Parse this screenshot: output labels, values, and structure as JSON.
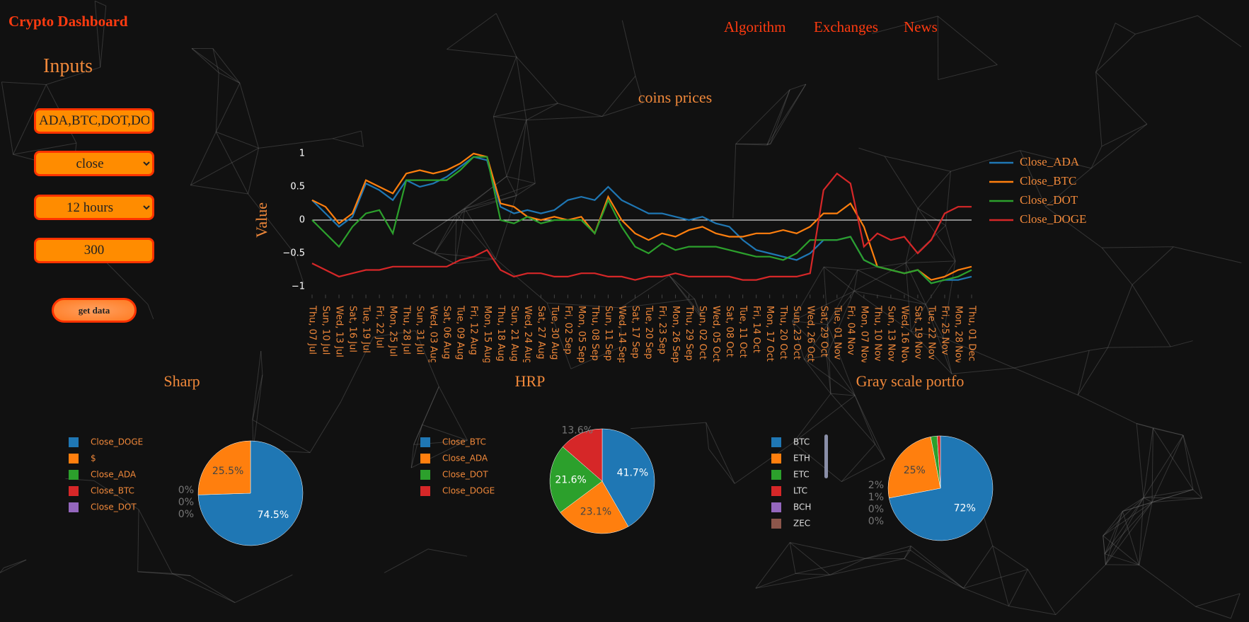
{
  "header": {
    "title": "Crypto Dashboard"
  },
  "nav": [
    "Algorithm",
    "Exchanges",
    "News"
  ],
  "inputs": {
    "heading": "Inputs",
    "coins": "ADA,BTC,DOT,DOGE",
    "price_type": "close",
    "interval": "12 hours",
    "limit": "300",
    "button": "get data"
  },
  "chart_data": [
    {
      "type": "line",
      "title": "coins prices",
      "y_label": "Value",
      "categories": [
        "Thu, 07 Jul",
        "Sun, 10 Jul",
        "Wed, 13 Jul",
        "Sat, 16 Jul",
        "Tue, 19 Jul",
        "Fri, 22 Jul",
        "Mon, 25 Jul",
        "Thu, 28 Jul",
        "Sun, 31 Jul",
        "Wed, 03 Aug",
        "Sat, 06 Aug",
        "Tue, 09 Aug",
        "Fri, 12 Aug",
        "Mon, 15 Aug",
        "Thu, 18 Aug",
        "Sun, 21 Aug",
        "Wed, 24 Aug",
        "Sat, 27 Aug",
        "Tue, 30 Aug",
        "Fri, 02 Sep",
        "Mon, 05 Sep",
        "Thu, 08 Sep",
        "Sun, 11 Sep",
        "Wed, 14 Sep",
        "Sat, 17 Sep",
        "Tue, 20 Sep",
        "Fri, 23 Sep",
        "Mon, 26 Sep",
        "Thu, 29 Sep",
        "Sun, 02 Oct",
        "Wed, 05 Oct",
        "Sat, 08 Oct",
        "Tue, 11 Oct",
        "Fri, 14 Oct",
        "Mon, 17 Oct",
        "Thu, 20 Oct",
        "Sun, 23 Oct",
        "Wed, 26 Oct",
        "Sat, 29 Oct",
        "Tue, 01 Nov",
        "Fri, 04 Nov",
        "Mon, 07 Nov",
        "Thu, 10 Nov",
        "Sun, 13 Nov",
        "Wed, 16 Nov",
        "Sat, 19 Nov",
        "Tue, 22 Nov",
        "Fri, 25 Nov",
        "Mon, 28 Nov",
        "Thu, 01 Dec"
      ],
      "series": [
        {
          "name": "Close_ADA",
          "color": "#1f77b4",
          "values": [
            0.3,
            0.1,
            -0.1,
            0.05,
            0.55,
            0.45,
            0.3,
            0.6,
            0.5,
            0.55,
            0.65,
            0.8,
            0.95,
            0.9,
            0.2,
            0.1,
            0.15,
            0.1,
            0.15,
            0.3,
            0.35,
            0.3,
            0.5,
            0.3,
            0.2,
            0.1,
            0.1,
            0.05,
            0,
            0.05,
            -0.05,
            -0.1,
            -0.3,
            -0.45,
            -0.5,
            -0.55,
            -0.6,
            -0.5,
            -0.3,
            -0.3,
            -0.25,
            -0.6,
            -0.7,
            -0.75,
            -0.8,
            -0.75,
            -0.95,
            -0.9,
            -0.9,
            -0.85
          ]
        },
        {
          "name": "Close_BTC",
          "color": "#ff7f0e",
          "values": [
            0.3,
            0.2,
            -0.05,
            0.1,
            0.6,
            0.5,
            0.4,
            0.7,
            0.75,
            0.7,
            0.75,
            0.85,
            1,
            0.95,
            0.25,
            0.2,
            0.05,
            0,
            0.05,
            0,
            0.05,
            -0.2,
            0.35,
            0,
            -0.2,
            -0.3,
            -0.2,
            -0.25,
            -0.15,
            -0.1,
            -0.2,
            -0.25,
            -0.25,
            -0.2,
            -0.2,
            -0.15,
            -0.2,
            -0.1,
            0.1,
            0.1,
            0.25,
            -0.1,
            -0.7,
            -0.75,
            -0.8,
            -0.75,
            -0.9,
            -0.85,
            -0.75,
            -0.7
          ]
        },
        {
          "name": "Close_DOT",
          "color": "#2ca02c",
          "values": [
            0,
            -0.2,
            -0.4,
            -0.1,
            0.1,
            0.15,
            -0.2,
            0.6,
            0.6,
            0.6,
            0.6,
            0.75,
            0.95,
            0.95,
            0,
            -0.05,
            0.05,
            -0.05,
            0,
            0,
            0,
            -0.2,
            0.3,
            -0.1,
            -0.4,
            -0.5,
            -0.35,
            -0.45,
            -0.4,
            -0.4,
            -0.4,
            -0.45,
            -0.5,
            -0.55,
            -0.55,
            -0.6,
            -0.5,
            -0.3,
            -0.3,
            -0.3,
            -0.25,
            -0.6,
            -0.7,
            -0.75,
            -0.8,
            -0.75,
            -0.95,
            -0.9,
            -0.85,
            -0.75
          ]
        },
        {
          "name": "Close_DOGE",
          "color": "#d62728",
          "values": [
            -0.65,
            -0.75,
            -0.85,
            -0.8,
            -0.75,
            -0.75,
            -0.7,
            -0.7,
            -0.7,
            -0.7,
            -0.7,
            -0.6,
            -0.55,
            -0.45,
            -0.75,
            -0.85,
            -0.8,
            -0.8,
            -0.85,
            -0.85,
            -0.8,
            -0.8,
            -0.85,
            -0.85,
            -0.9,
            -0.85,
            -0.85,
            -0.8,
            -0.85,
            -0.85,
            -0.85,
            -0.85,
            -0.9,
            -0.9,
            -0.85,
            -0.85,
            -0.85,
            -0.8,
            0.45,
            0.7,
            0.55,
            -0.4,
            -0.2,
            -0.3,
            -0.25,
            -0.5,
            -0.3,
            0.1,
            0.2,
            0.2
          ]
        }
      ],
      "ylim": [
        -1.1,
        1.1
      ],
      "yticks": [
        {
          "value": -1,
          "label": "−1"
        },
        {
          "value": -0.5,
          "label": "−0.5"
        },
        0,
        0.5,
        1
      ],
      "zeroline": true
    },
    {
      "type": "pie",
      "title": "Sharp",
      "categories": [
        "Close_DOGE",
        "$",
        "Close_ADA",
        "Close_BTC",
        "Close_DOT"
      ],
      "values": [
        74.5,
        25.5,
        0,
        0,
        0
      ],
      "value_labels": [
        "74.5%",
        "25.5%",
        "0%",
        "0%",
        "0%"
      ],
      "colors": [
        "#1f77b4",
        "#ff7f0e",
        "#2ca02c",
        "#d62728",
        "#9467bd"
      ]
    },
    {
      "type": "pie",
      "title": "HRP",
      "categories": [
        "Close_BTC",
        "Close_ADA",
        "Close_DOT",
        "Close_DOGE"
      ],
      "values": [
        41.7,
        23.1,
        21.6,
        13.6
      ],
      "value_labels": [
        "41.7%",
        "23.1%",
        "21.6%",
        "13.6%"
      ],
      "colors": [
        "#1f77b4",
        "#ff7f0e",
        "#2ca02c",
        "#d62728"
      ]
    },
    {
      "type": "pie",
      "title": "Gray scale portfo",
      "categories": [
        "BTC",
        "ETH",
        "ETC",
        "LTC",
        "BCH",
        "ZEC"
      ],
      "values": [
        72,
        25,
        2,
        1,
        0,
        0
      ],
      "value_labels": [
        "72%",
        "25%",
        "2%",
        "1%",
        "0%",
        "0%"
      ],
      "colors": [
        "#1f77b4",
        "#ff7f0e",
        "#2ca02c",
        "#d62728",
        "#9467bd",
        "#8c564b"
      ]
    }
  ]
}
